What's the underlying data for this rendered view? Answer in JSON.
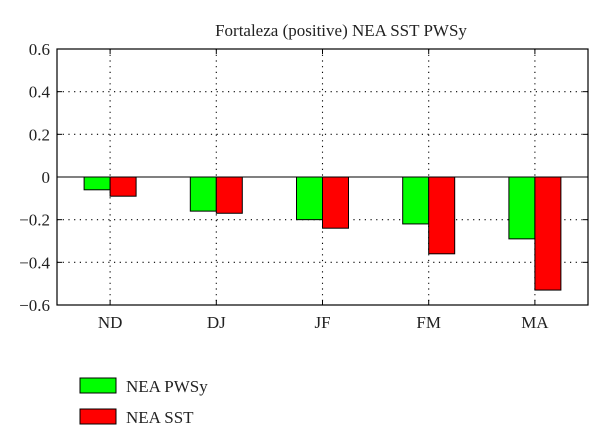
{
  "chart_data": {
    "type": "bar",
    "title": "Fortaleza (positive) NEA SST PWSy",
    "xlabel": "",
    "ylabel": "",
    "categories": [
      "ND",
      "DJ",
      "JF",
      "FM",
      "MA"
    ],
    "series": [
      {
        "name": "NEA PWSy",
        "color": "#00ff00",
        "values": [
          -0.06,
          -0.16,
          -0.2,
          -0.22,
          -0.29
        ]
      },
      {
        "name": "NEA SST",
        "color": "#ff0000",
        "values": [
          -0.09,
          -0.17,
          -0.24,
          -0.36,
          -0.53
        ]
      }
    ],
    "ylim": [
      -0.6,
      0.6
    ],
    "yticks": [
      0.6,
      0.4,
      0.2,
      0,
      -0.2,
      -0.4,
      -0.6
    ],
    "ytick_labels": [
      "0.6",
      "0.4",
      "0.2",
      "0",
      "−0.2",
      "−0.4",
      "−0.6"
    ],
    "grid": true,
    "grid_style": "dotted",
    "legend_position": "bottom-left"
  }
}
